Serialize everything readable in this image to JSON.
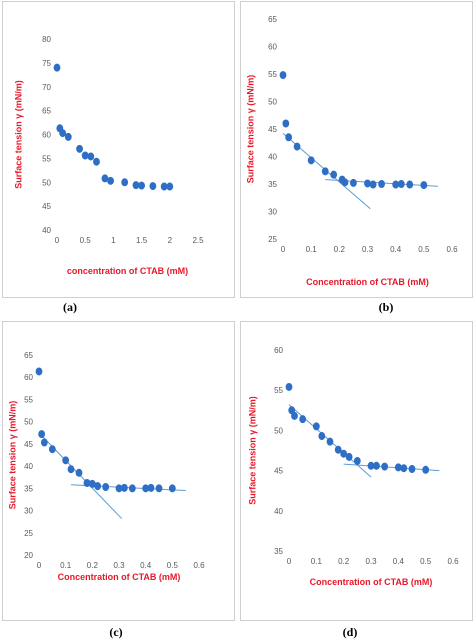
{
  "captions": [
    "(a)",
    "(b)",
    "(c)",
    "(d)"
  ],
  "colors": {
    "point": "#2e6fc5",
    "line": "#5b9bd5",
    "label": "#e8182a",
    "tick": "#595959"
  },
  "chart_data": [
    {
      "type": "scatter",
      "xlabel": "concentration  of CTAB (mM)",
      "ylabel": "Surface tension γ (mN/m)",
      "xlim": [
        0,
        2.5
      ],
      "ylim": [
        40,
        80
      ],
      "xticks": [
        "0",
        "0.5",
        "1",
        "1.5",
        "2",
        "2.5"
      ],
      "yticks": [
        "40",
        "45",
        "50",
        "55",
        "60",
        "65",
        "70",
        "75",
        "80"
      ],
      "grid": false,
      "points": [
        [
          0,
          74
        ],
        [
          0.05,
          61.3
        ],
        [
          0.1,
          60.3
        ],
        [
          0.2,
          59.5
        ],
        [
          0.4,
          57
        ],
        [
          0.5,
          55.6
        ],
        [
          0.6,
          55.4
        ],
        [
          0.7,
          54.3
        ],
        [
          0.85,
          50.8
        ],
        [
          0.95,
          50.3
        ],
        [
          1.2,
          50
        ],
        [
          1.4,
          49.4
        ],
        [
          1.5,
          49.3
        ],
        [
          1.7,
          49.2
        ],
        [
          1.9,
          49.1
        ],
        [
          2.0,
          49.1
        ]
      ]
    },
    {
      "type": "scatter",
      "xlabel": "Concentration of CTAB (mM)",
      "ylabel": "Surface tension γ (mN/m)",
      "xlim": [
        0,
        0.6
      ],
      "ylim": [
        25,
        65
      ],
      "xticks": [
        "0",
        "0.1",
        "0.2",
        "0.3",
        "0.4",
        "0.5",
        "0.6"
      ],
      "yticks": [
        "25",
        "30",
        "35",
        "40",
        "45",
        "50",
        "55",
        "60",
        "65"
      ],
      "grid": false,
      "points": [
        [
          0,
          54.8
        ],
        [
          0.01,
          46
        ],
        [
          0.02,
          43.5
        ],
        [
          0.05,
          41.8
        ],
        [
          0.1,
          39.3
        ],
        [
          0.15,
          37.3
        ],
        [
          0.18,
          36.7
        ],
        [
          0.21,
          35.8
        ],
        [
          0.22,
          35.3
        ],
        [
          0.25,
          35.2
        ],
        [
          0.3,
          35.1
        ],
        [
          0.32,
          34.9
        ],
        [
          0.35,
          35
        ],
        [
          0.4,
          34.9
        ],
        [
          0.42,
          35
        ],
        [
          0.45,
          34.9
        ],
        [
          0.5,
          34.8
        ]
      ],
      "trendlines": [
        {
          "from": [
            0,
            44.2
          ],
          "to": [
            0.31,
            30.5
          ]
        },
        {
          "from": [
            0.15,
            35.8
          ],
          "to": [
            0.55,
            34.6
          ]
        }
      ]
    },
    {
      "type": "scatter",
      "xlabel": "Concentration of CTAB (mM)",
      "ylabel": "Surface tension γ (mN/m)",
      "xlim": [
        0,
        0.6
      ],
      "ylim": [
        20,
        65
      ],
      "xticks": [
        "0",
        "0.1",
        "0.2",
        "0.3",
        "0.4",
        "0.5",
        "0.6"
      ],
      "yticks": [
        "20",
        "25",
        "30",
        "35",
        "40",
        "45",
        "50",
        "55",
        "60",
        "65"
      ],
      "grid": false,
      "points": [
        [
          0,
          61.3
        ],
        [
          0.01,
          47.2
        ],
        [
          0.02,
          45.3
        ],
        [
          0.05,
          43.8
        ],
        [
          0.1,
          41.3
        ],
        [
          0.12,
          39.3
        ],
        [
          0.15,
          38.5
        ],
        [
          0.18,
          36.2
        ],
        [
          0.2,
          36
        ],
        [
          0.22,
          35.5
        ],
        [
          0.25,
          35.3
        ],
        [
          0.3,
          35
        ],
        [
          0.32,
          35.1
        ],
        [
          0.35,
          35
        ],
        [
          0.4,
          35
        ],
        [
          0.42,
          35.1
        ],
        [
          0.45,
          35
        ],
        [
          0.5,
          35
        ]
      ],
      "trendlines": [
        {
          "from": [
            0,
            47.5
          ],
          "to": [
            0.31,
            28.2
          ]
        },
        {
          "from": [
            0.12,
            35.8
          ],
          "to": [
            0.55,
            34.5
          ]
        }
      ]
    },
    {
      "type": "scatter",
      "xlabel": "Concentration of CTAB (mM)",
      "ylabel": "Surface tension γ (mN/m)",
      "xlim": [
        0,
        0.6
      ],
      "ylim": [
        35,
        60
      ],
      "xticks": [
        "0",
        "0.1",
        "0.2",
        "0.3",
        "0.4",
        "0.5",
        "0.6"
      ],
      "yticks": [
        "35",
        "40",
        "45",
        "50",
        "55",
        "60"
      ],
      "grid": false,
      "points": [
        [
          0,
          55.4
        ],
        [
          0.01,
          52.5
        ],
        [
          0.02,
          51.8
        ],
        [
          0.05,
          51.4
        ],
        [
          0.1,
          50.5
        ],
        [
          0.12,
          49.3
        ],
        [
          0.15,
          48.6
        ],
        [
          0.18,
          47.6
        ],
        [
          0.2,
          47.1
        ],
        [
          0.22,
          46.7
        ],
        [
          0.25,
          46.2
        ],
        [
          0.3,
          45.6
        ],
        [
          0.32,
          45.6
        ],
        [
          0.35,
          45.5
        ],
        [
          0.4,
          45.4
        ],
        [
          0.42,
          45.3
        ],
        [
          0.45,
          45.2
        ],
        [
          0.5,
          45.1
        ]
      ],
      "trendlines": [
        {
          "from": [
            0,
            53.2
          ],
          "to": [
            0.3,
            44.2
          ]
        },
        {
          "from": [
            0.2,
            45.8
          ],
          "to": [
            0.55,
            45
          ]
        }
      ]
    }
  ]
}
